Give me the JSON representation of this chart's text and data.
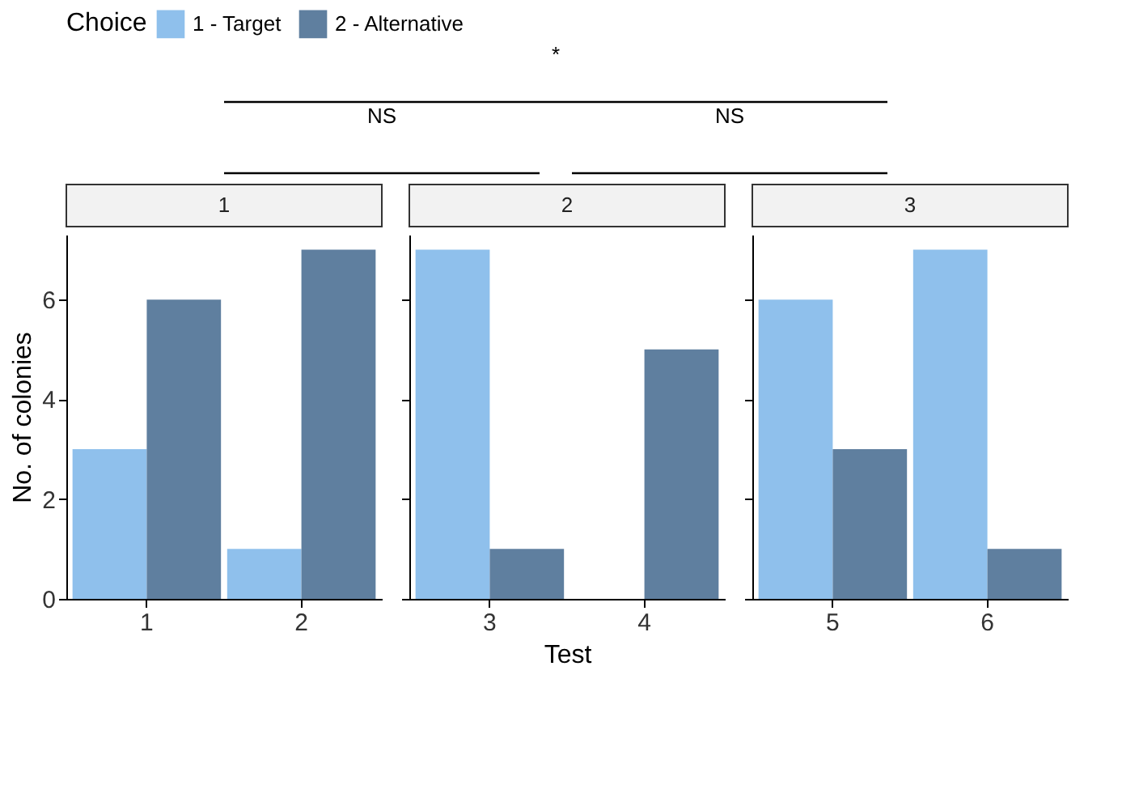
{
  "chart_data": [
    {
      "type": "bar",
      "title": "1",
      "categories": [
        "1",
        "2"
      ],
      "ylabel": "No. of colonies",
      "legend": "top",
      "legend_title": "Choice",
      "ylim": [
        0,
        7.3
      ],
      "yticks": [
        0,
        2,
        4,
        6
      ],
      "annotations": [
        "*",
        "NS",
        "NS"
      ],
      "series": [
        {
          "name": "1 - Target",
          "color": "#8fc0ec",
          "values": [
            3,
            1
          ]
        },
        {
          "name": "2 - Alternative",
          "color": "#5f7f9f",
          "values": [
            6,
            7
          ]
        }
      ]
    },
    {
      "type": "bar",
      "title": "2",
      "categories": [
        "3",
        "4"
      ],
      "xlabel": "Test",
      "ylim": [
        0,
        7.3
      ],
      "yticks": [
        0,
        2,
        4,
        6
      ],
      "tick_labels": "x",
      "series": [
        {
          "name": "1 - Target",
          "color": "#8fc0ec",
          "values": [
            7,
            0
          ]
        },
        {
          "name": "2 - Alternative",
          "color": "#5f7f9f",
          "values": [
            1,
            5
          ]
        }
      ]
    },
    {
      "type": "bar",
      "title": "3",
      "categories": [
        "5",
        "6"
      ],
      "ylim": [
        0,
        7.3
      ],
      "yticks": [
        0,
        2,
        4,
        6
      ],
      "tick_labels": "x",
      "series": [
        {
          "name": "1 - Target",
          "color": "#8fc0ec",
          "values": [
            6,
            7
          ]
        },
        {
          "name": "2 - Alternative",
          "color": "#5f7f9f",
          "values": [
            3,
            1
          ]
        }
      ]
    }
  ]
}
